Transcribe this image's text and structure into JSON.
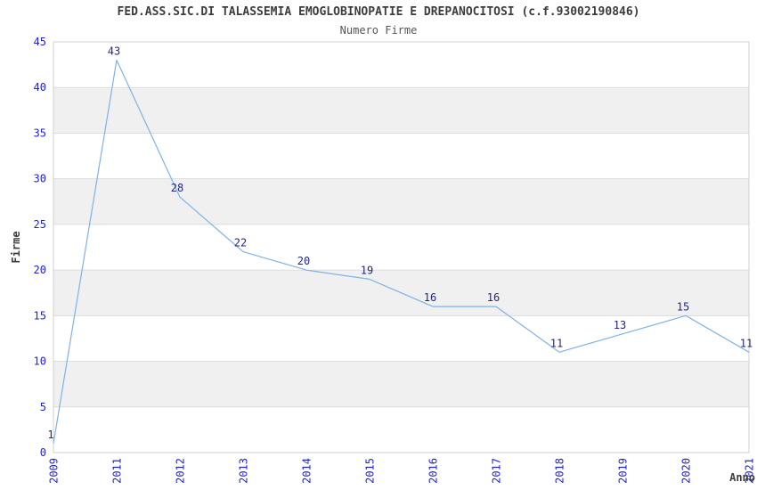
{
  "chart": {
    "title": "FED.ASS.SIC.DI TALASSEMIA EMOGLOBINOPATIE E DREPANOCITOSI (c.f.93002190846)",
    "subtitle": "Numero Firme"
  },
  "chart_data": {
    "type": "line",
    "title": "FED.ASS.SIC.DI TALASSEMIA EMOGLOBINOPATIE E DREPANOCITOSI (c.f.93002190846)",
    "subtitle": "Numero Firme",
    "categories": [
      "2009",
      "2011",
      "2012",
      "2013",
      "2014",
      "2015",
      "2016",
      "2017",
      "2018",
      "2019",
      "2020",
      "2021"
    ],
    "values": [
      1,
      43,
      28,
      22,
      20,
      19,
      16,
      16,
      11,
      13,
      15,
      11
    ],
    "xlabel": "Anno",
    "ylabel": "Firme",
    "ylim": [
      0,
      45
    ],
    "ytick_step": 5,
    "grid": "horizontal-bands",
    "legend": "none",
    "point_labels": true,
    "colors": {
      "line": "#7fb2e5",
      "tick_label": "#2323cc",
      "point_label": "#26267f",
      "band_fill": "#f0f0f0",
      "gridline": "#dcdcdc",
      "plot_border": "#d0d0d0",
      "title": "#3c3c3c",
      "subtitle": "#555555",
      "axis_label": "#3c3c3c"
    }
  }
}
